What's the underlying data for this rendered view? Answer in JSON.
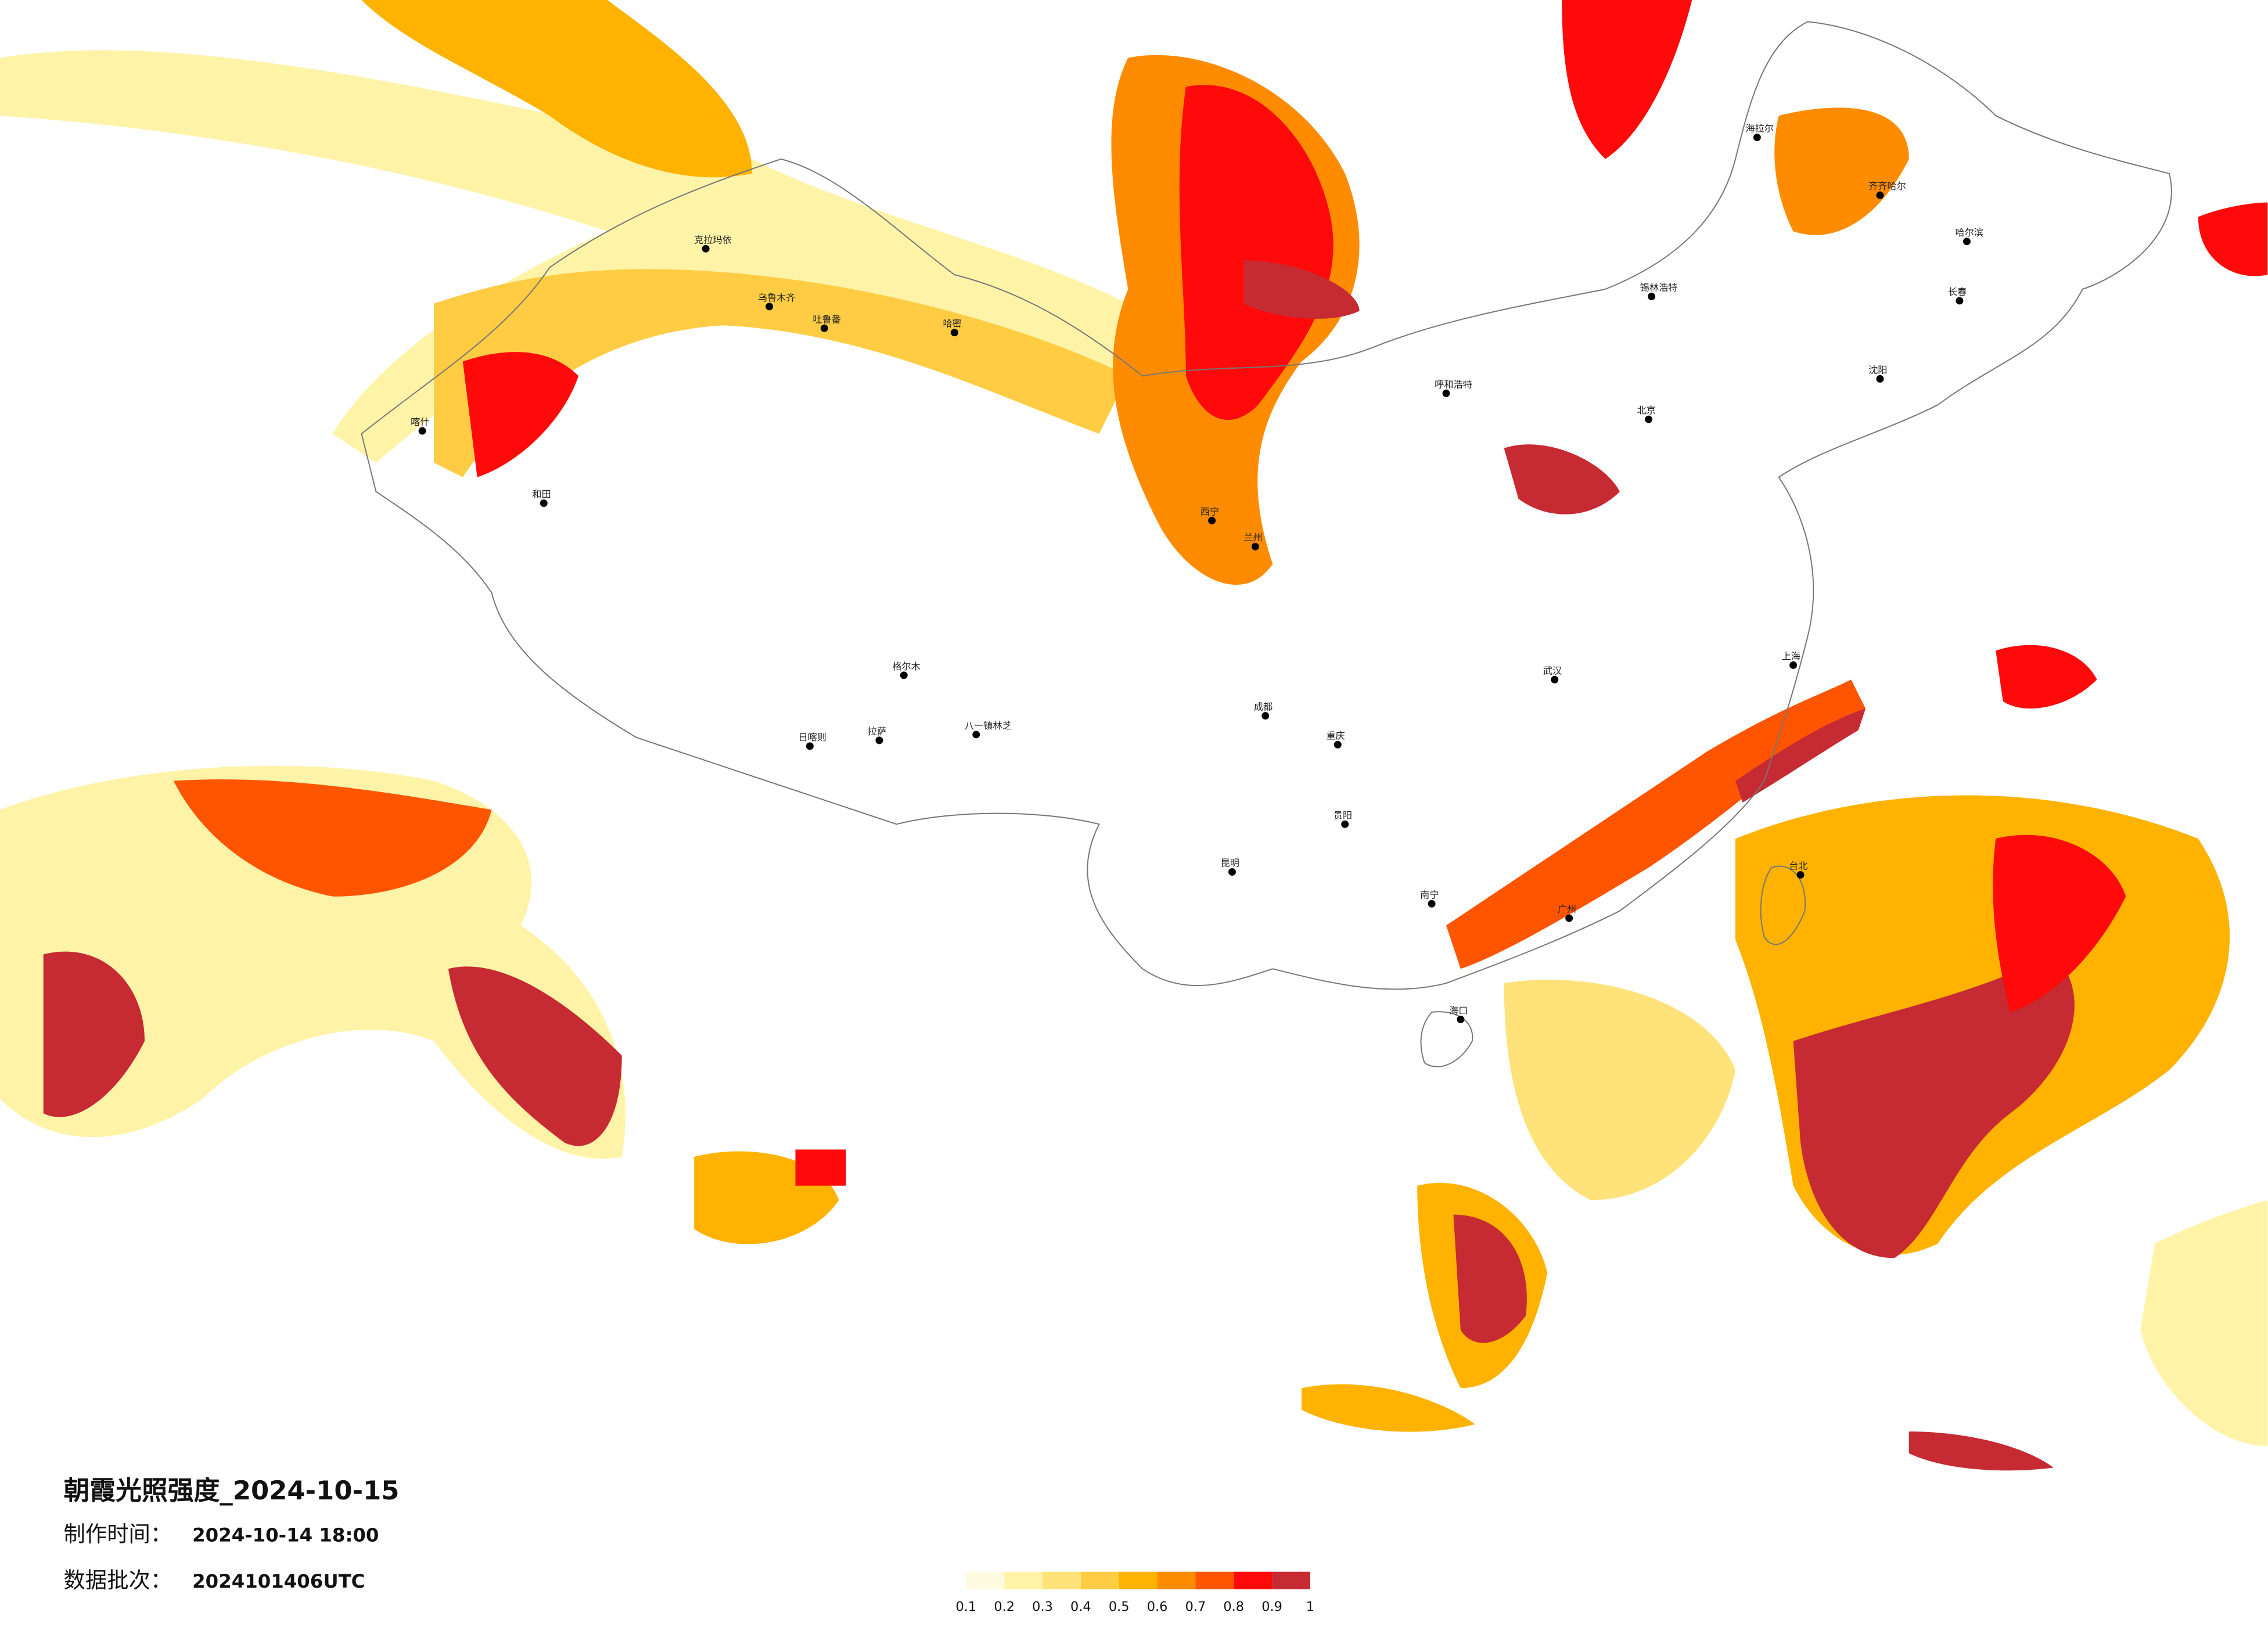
{
  "header": {
    "title": "朝霞光照强度_2024-10-15",
    "made_label": "制作时间：",
    "made_value": "2024-10-14 18:00",
    "batch_label": "数据批次：",
    "batch_value": "2024101406UTC"
  },
  "legend": {
    "ticks": [
      0.1,
      0.2,
      0.3,
      0.4,
      0.5,
      0.6,
      0.7,
      0.8,
      0.9,
      1
    ],
    "colors": [
      "#fffbe0",
      "#fff3a8",
      "#ffe27a",
      "#ffcc44",
      "#ffb300",
      "#ff8c00",
      "#ff5500",
      "#ff0a0a",
      "#c62a32"
    ]
  },
  "cities": [
    "克拉玛依",
    "乌鲁木齐",
    "吐鲁番",
    "哈密",
    "喀什",
    "和田",
    "日喀则",
    "拉萨",
    "八一镇林芝",
    "格尔木",
    "西宁",
    "兰州",
    "呼和浩特",
    "锡林浩特",
    "海拉尔",
    "齐齐哈尔",
    "哈尔滨",
    "长春",
    "沈阳",
    "北京",
    "上海",
    "武汉",
    "成都",
    "重庆",
    "贵阳",
    "昆明",
    "南宁",
    "广州",
    "海口",
    "台北"
  ]
}
